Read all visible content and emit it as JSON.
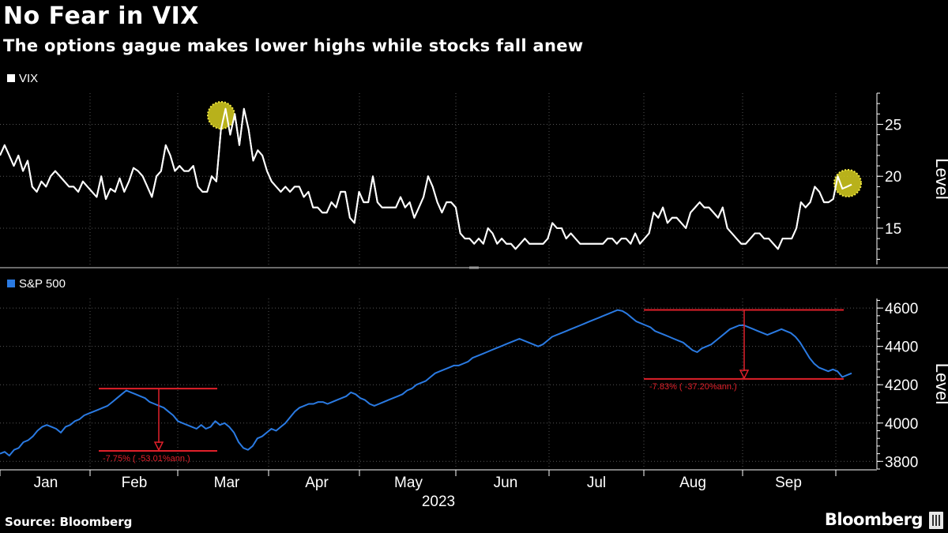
{
  "header": {
    "title": "No Fear in VIX",
    "subtitle": "The options gague makes lower highs while stocks fall anew"
  },
  "footer": {
    "source": "Source: Bloomberg",
    "brand": "Bloomberg"
  },
  "colors": {
    "background": "#000000",
    "vix_line": "#ffffff",
    "spx_line": "#2a7ae2",
    "annotation": "#e0202a",
    "highlight": "#d8d020",
    "grid": "#555555"
  },
  "chart_data": [
    {
      "type": "line",
      "legend": "VIX",
      "ylabel": "Level",
      "ylim": [
        11.5,
        28
      ],
      "yticks": [
        15,
        20,
        25
      ],
      "grid": true,
      "series": [
        {
          "name": "VIX",
          "values": [
            22,
            23,
            22,
            21,
            22,
            20.5,
            21.5,
            19,
            18.5,
            19.5,
            19,
            20,
            20.5,
            20,
            19.5,
            19,
            19,
            18.5,
            19.5,
            19,
            18.5,
            18,
            20,
            17.8,
            18.8,
            18.5,
            19.8,
            18.5,
            19.5,
            20.8,
            20.5,
            20,
            19,
            18,
            20,
            20.5,
            23,
            22,
            20.5,
            21,
            20.5,
            20.5,
            21,
            19,
            18.5,
            18.5,
            20,
            19.5,
            24.5,
            26.5,
            24,
            26,
            23,
            26.5,
            24.5,
            21.5,
            22.5,
            22,
            20.5,
            19.5,
            19,
            18.5,
            19,
            18.5,
            19,
            19,
            18,
            18.5,
            17,
            17,
            16.5,
            16.5,
            17.5,
            17,
            18.5,
            18.5,
            16,
            15.5,
            18.5,
            17.5,
            17.5,
            20,
            17.5,
            17,
            17,
            17,
            17,
            18,
            17,
            17.5,
            16,
            17,
            18,
            20,
            19,
            17.5,
            16.5,
            17.5,
            17.5,
            17,
            14.5,
            14,
            14,
            13.5,
            14,
            13.5,
            15,
            14.5,
            13.5,
            14,
            13.5,
            13.5,
            13,
            13.5,
            14,
            13.5,
            13.5,
            13.5,
            13.5,
            14,
            15.5,
            15,
            15,
            14,
            14.5,
            14,
            13.5,
            13.5,
            13.5,
            13.5,
            13.5,
            13.5,
            14,
            14,
            13.5,
            14,
            14,
            13.5,
            14.5,
            13.5,
            14,
            14.5,
            16.5,
            16,
            17,
            15.5,
            16,
            16,
            15.5,
            15,
            16.5,
            17,
            17.5,
            17,
            17,
            16.5,
            16,
            17,
            15,
            14.5,
            14,
            13.5,
            13.5,
            14,
            14.5,
            14.5,
            14,
            14,
            13.5,
            13,
            14,
            14,
            14,
            15,
            17.5,
            17,
            17.5,
            19,
            18.5,
            17.5,
            17.5,
            17.8,
            20,
            18.8,
            19,
            19.2
          ]
        }
      ]
    },
    {
      "type": "line",
      "legend": "S&P 500",
      "xlabel": "2023",
      "ylabel": "Level",
      "ylim": [
        3760,
        4650
      ],
      "yticks": [
        3800,
        4000,
        4200,
        4400,
        4600
      ],
      "grid": true,
      "x_month_labels": [
        "Jan",
        "Feb",
        "Mar",
        "Apr",
        "May",
        "Jun",
        "Jul",
        "Aug",
        "Sep"
      ],
      "series": [
        {
          "name": "S&P 500",
          "values": [
            3840,
            3850,
            3830,
            3860,
            3870,
            3900,
            3910,
            3930,
            3960,
            3980,
            3990,
            3980,
            3970,
            3950,
            3980,
            3990,
            4010,
            4020,
            4040,
            4050,
            4060,
            4070,
            4080,
            4090,
            4110,
            4130,
            4150,
            4170,
            4160,
            4150,
            4140,
            4130,
            4110,
            4100,
            4090,
            4080,
            4060,
            4040,
            4010,
            4000,
            3990,
            3980,
            3970,
            3990,
            3970,
            3980,
            4010,
            3990,
            4000,
            3980,
            3950,
            3900,
            3870,
            3860,
            3880,
            3920,
            3930,
            3950,
            3970,
            3960,
            3980,
            4000,
            4030,
            4060,
            4080,
            4090,
            4100,
            4100,
            4110,
            4110,
            4100,
            4110,
            4120,
            4130,
            4140,
            4160,
            4150,
            4130,
            4120,
            4100,
            4090,
            4100,
            4110,
            4120,
            4130,
            4140,
            4150,
            4170,
            4180,
            4200,
            4210,
            4220,
            4240,
            4260,
            4270,
            4280,
            4290,
            4300,
            4300,
            4310,
            4320,
            4340,
            4350,
            4360,
            4370,
            4380,
            4390,
            4400,
            4410,
            4420,
            4430,
            4440,
            4430,
            4420,
            4410,
            4400,
            4410,
            4430,
            4450,
            4460,
            4470,
            4480,
            4490,
            4500,
            4510,
            4520,
            4530,
            4540,
            4550,
            4560,
            4570,
            4580,
            4590,
            4585,
            4570,
            4550,
            4530,
            4520,
            4510,
            4500,
            4480,
            4470,
            4460,
            4450,
            4440,
            4430,
            4420,
            4400,
            4380,
            4370,
            4390,
            4400,
            4410,
            4430,
            4450,
            4470,
            4490,
            4500,
            4510,
            4510,
            4500,
            4490,
            4480,
            4470,
            4460,
            4470,
            4480,
            4490,
            4480,
            4470,
            4450,
            4420,
            4380,
            4340,
            4310,
            4290,
            4280,
            4270,
            4280,
            4270,
            4240,
            4250,
            4260
          ]
        }
      ],
      "annotations": [
        {
          "label": "-7.75% ( -53.01%ann.)",
          "from": 4180,
          "to": 3855
        },
        {
          "label": "-7.83% ( -37.20%ann.)",
          "from": 4590,
          "to": 4230
        }
      ]
    }
  ]
}
